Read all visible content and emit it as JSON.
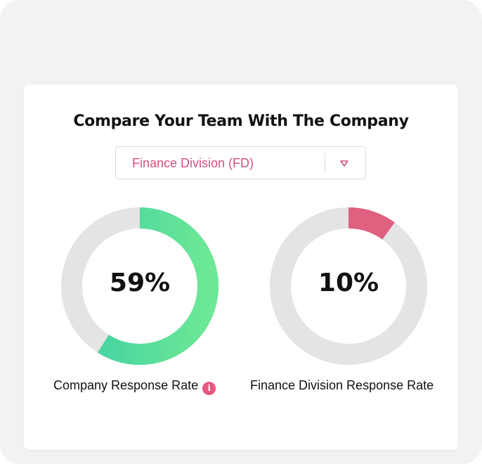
{
  "title": "Compare Your Team With The Company",
  "division_select": {
    "value": "Finance Division (FD)",
    "caret_icon": "triangle-down-icon"
  },
  "colors": {
    "company_gradient_start": "#3ecfa3",
    "company_gradient_end": "#6de896",
    "division_accent": "#e0607f",
    "track": "#e4e4e4",
    "select_text": "#d6507a"
  },
  "company": {
    "percent_label": "59%",
    "value": 0.59,
    "label": "Company Response Rate",
    "info_icon": "info-icon"
  },
  "division": {
    "percent_label": "10%",
    "value": 0.1,
    "label": "Finance Division Response Rate"
  }
}
